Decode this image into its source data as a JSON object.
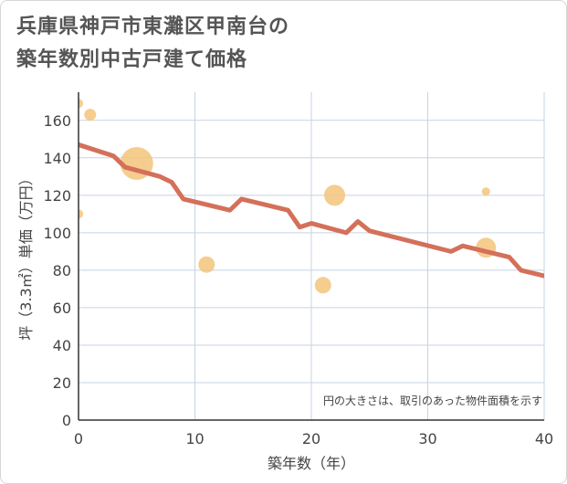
{
  "title": {
    "line1": "兵庫県神戸市東灘区甲南台の",
    "line2": "築年数別中古戸建て価格"
  },
  "colors": {
    "trend_line": "#d4705a",
    "bubbles": "#f3c47a",
    "grid": "#c7d3e0",
    "text": "#444444"
  },
  "chart_data": {
    "type": "scatter",
    "xlabel": "築年数（年）",
    "ylabel": "坪（3.3㎡）単価（万円）",
    "xlim": [
      0,
      40
    ],
    "ylim": [
      0,
      175
    ],
    "x_ticks": [
      0,
      10,
      20,
      30,
      40
    ],
    "y_ticks": [
      0,
      20,
      40,
      60,
      80,
      100,
      120,
      140,
      160
    ],
    "grid": true,
    "note": "円の大きさは、取引のあった物件面積を示す",
    "bubbles": [
      {
        "x": 0,
        "y": 169,
        "size": 1.0
      },
      {
        "x": 1,
        "y": 163,
        "size": 1.3
      },
      {
        "x": 0,
        "y": 110,
        "size": 1.0
      },
      {
        "x": 5,
        "y": 137,
        "size": 3.6
      },
      {
        "x": 11,
        "y": 83,
        "size": 1.8
      },
      {
        "x": 22,
        "y": 120,
        "size": 2.3
      },
      {
        "x": 21,
        "y": 72,
        "size": 1.8
      },
      {
        "x": 35,
        "y": 122,
        "size": 0.9
      },
      {
        "x": 35,
        "y": 92,
        "size": 2.2
      }
    ],
    "trend": {
      "name": "",
      "x": [
        0,
        3,
        4,
        7,
        8,
        9,
        13,
        14,
        18,
        19,
        20,
        23,
        24,
        25,
        32,
        33,
        37,
        38,
        40
      ],
      "y": [
        147,
        141,
        135,
        130,
        127,
        118,
        112,
        118,
        112,
        103,
        105,
        100,
        106,
        101,
        90,
        93,
        87,
        80,
        77
      ]
    }
  }
}
